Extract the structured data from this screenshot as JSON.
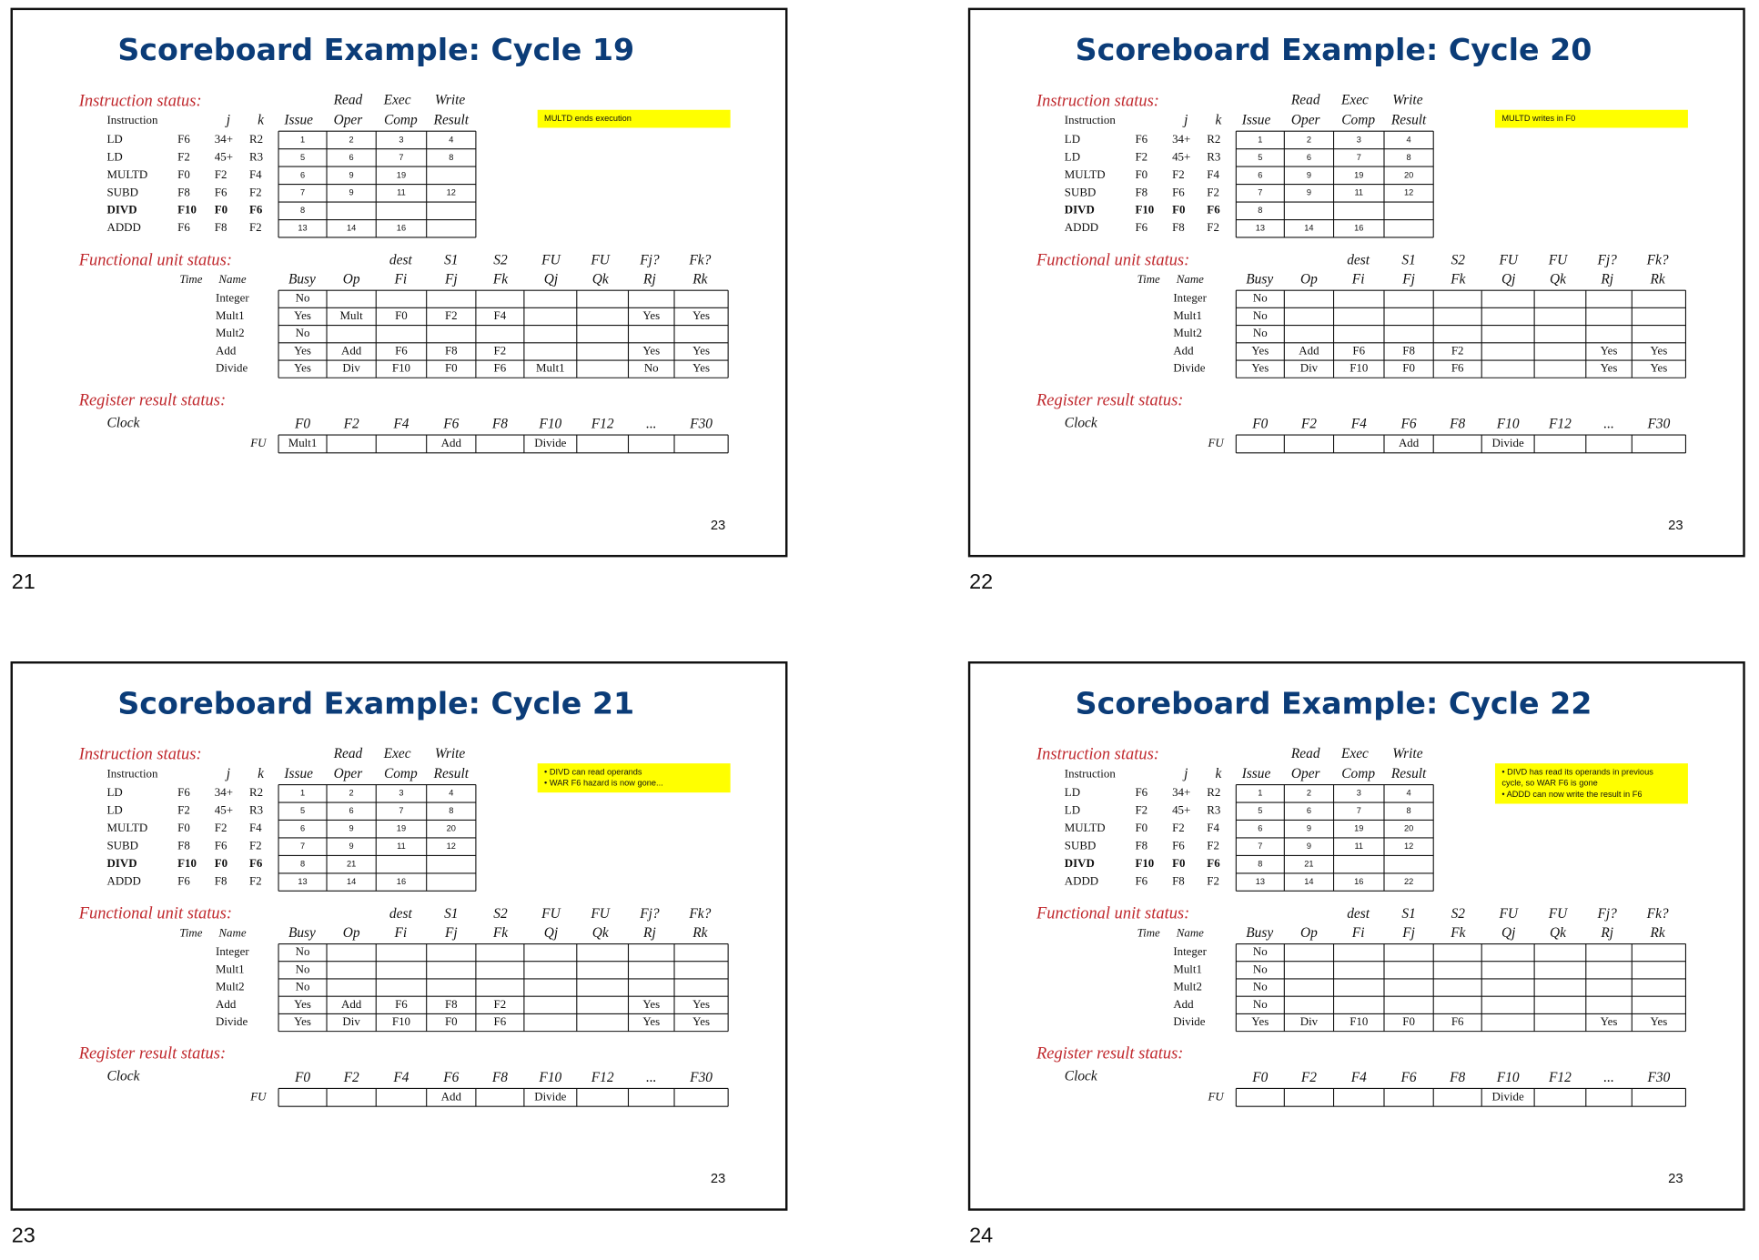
{
  "common": {
    "instruction_status": "Instruction status:",
    "instr_head_top": [
      "Read",
      "Exec",
      "Write"
    ],
    "instr_head": [
      "Instruction",
      "j",
      "k",
      "Issue",
      "Oper",
      "Comp",
      "Result"
    ],
    "instructions": [
      {
        "name": "LD",
        "ops": [
          "F6",
          "34+",
          "R2"
        ],
        "color": "#111111",
        "bold": false
      },
      {
        "name": "LD",
        "ops": [
          "F2",
          "45+",
          "R3"
        ],
        "color": "#c0282d",
        "bold": false
      },
      {
        "name": "MULTD",
        "ops": [
          "F0",
          "F2",
          "F4"
        ],
        "color": "#2b2ba8",
        "bold": false
      },
      {
        "name": "SUBD",
        "ops": [
          "F8",
          "F6",
          "F2"
        ],
        "color": "#c03cc8",
        "bold": false
      },
      {
        "name": "DIVD",
        "ops": [
          "F10",
          "F0",
          "F6"
        ],
        "color": "#1a9a3a",
        "bold": true
      },
      {
        "name": "ADDD",
        "ops": [
          "F6",
          "F8",
          "F2"
        ],
        "color": "#111111",
        "bold": false
      }
    ],
    "fu_status": "Functional unit status:",
    "fu_head_top": [
      "dest",
      "S1",
      "S2",
      "FU",
      "FU",
      "Fj?",
      "Fk?"
    ],
    "fu_head": [
      "Time",
      "Name",
      "Busy",
      "Op",
      "Fi",
      "Fj",
      "Fk",
      "Qj",
      "Qk",
      "Rj",
      "Rk"
    ],
    "fu_names": [
      "Integer",
      "Mult1",
      "Mult2",
      "Add",
      "Divide"
    ],
    "reg_status": "Register result status:",
    "clock": "Clock",
    "reg_head": [
      "F0",
      "F2",
      "F4",
      "F6",
      "F8",
      "F10",
      "F12",
      "...",
      "F30"
    ],
    "reg_row": "FU",
    "page_number": "23"
  },
  "slides": [
    {
      "label": "21",
      "title": "Scoreboard Example: Cycle 19",
      "note": [
        "MULTD ends execution"
      ],
      "status": [
        [
          1,
          2,
          3,
          4
        ],
        [
          5,
          6,
          7,
          8
        ],
        [
          6,
          9,
          19,
          null
        ],
        [
          7,
          9,
          11,
          12
        ],
        [
          8,
          null,
          null,
          null
        ],
        [
          13,
          14,
          16,
          null
        ]
      ],
      "fu": [
        [
          "No",
          null,
          null,
          null,
          null,
          null,
          null,
          null,
          null
        ],
        [
          "Yes",
          "Mult",
          "F0",
          "F2",
          "F4",
          null,
          null,
          "Yes",
          "Yes"
        ],
        [
          "No",
          null,
          null,
          null,
          null,
          null,
          null,
          null,
          null
        ],
        [
          "Yes",
          "Add",
          "F6",
          "F8",
          "F2",
          null,
          null,
          "Yes",
          "Yes"
        ],
        [
          "Yes",
          "Div",
          "F10",
          "F0",
          "F6",
          "Mult1",
          null,
          "No",
          "Yes"
        ]
      ],
      "reg": [
        "Mult1",
        null,
        null,
        "Add",
        null,
        "Divide",
        null,
        null,
        null
      ]
    },
    {
      "label": "22",
      "title": "Scoreboard Example: Cycle 20",
      "note": [
        "MULTD writes in F0"
      ],
      "status": [
        [
          1,
          2,
          3,
          4
        ],
        [
          5,
          6,
          7,
          8
        ],
        [
          6,
          9,
          19,
          20
        ],
        [
          7,
          9,
          11,
          12
        ],
        [
          8,
          null,
          null,
          null
        ],
        [
          13,
          14,
          16,
          null
        ]
      ],
      "fu": [
        [
          "No",
          null,
          null,
          null,
          null,
          null,
          null,
          null,
          null
        ],
        [
          "No",
          null,
          null,
          null,
          null,
          null,
          null,
          null,
          null
        ],
        [
          "No",
          null,
          null,
          null,
          null,
          null,
          null,
          null,
          null
        ],
        [
          "Yes",
          "Add",
          "F6",
          "F8",
          "F2",
          null,
          null,
          "Yes",
          "Yes"
        ],
        [
          "Yes",
          "Div",
          "F10",
          "F0",
          "F6",
          null,
          null,
          "Yes",
          "Yes"
        ]
      ],
      "reg": [
        null,
        null,
        null,
        "Add",
        null,
        "Divide",
        null,
        null,
        null
      ]
    },
    {
      "label": "23",
      "title": "Scoreboard Example: Cycle 21",
      "note": [
        "• DIVD can read operands",
        "• WAR F6 hazard is now gone..."
      ],
      "status": [
        [
          1,
          2,
          3,
          4
        ],
        [
          5,
          6,
          7,
          8
        ],
        [
          6,
          9,
          19,
          20
        ],
        [
          7,
          9,
          11,
          12
        ],
        [
          8,
          21,
          null,
          null
        ],
        [
          13,
          14,
          16,
          null
        ]
      ],
      "fu": [
        [
          "No",
          null,
          null,
          null,
          null,
          null,
          null,
          null,
          null
        ],
        [
          "No",
          null,
          null,
          null,
          null,
          null,
          null,
          null,
          null
        ],
        [
          "No",
          null,
          null,
          null,
          null,
          null,
          null,
          null,
          null
        ],
        [
          "Yes",
          "Add",
          "F6",
          "F8",
          "F2",
          null,
          null,
          "Yes",
          "Yes"
        ],
        [
          "Yes",
          "Div",
          "F10",
          "F0",
          "F6",
          null,
          null,
          "Yes",
          "Yes"
        ]
      ],
      "reg": [
        null,
        null,
        null,
        "Add",
        null,
        "Divide",
        null,
        null,
        null
      ]
    },
    {
      "label": "24",
      "title": "Scoreboard Example: Cycle 22",
      "note": [
        "• DIVD has read its operands in previous",
        "cycle, so WAR F6 is gone",
        "• ADDD can now write the result in F6"
      ],
      "status": [
        [
          1,
          2,
          3,
          4
        ],
        [
          5,
          6,
          7,
          8
        ],
        [
          6,
          9,
          19,
          20
        ],
        [
          7,
          9,
          11,
          12
        ],
        [
          8,
          21,
          null,
          null
        ],
        [
          13,
          14,
          16,
          22
        ]
      ],
      "fu": [
        [
          "No",
          null,
          null,
          null,
          null,
          null,
          null,
          null,
          null
        ],
        [
          "No",
          null,
          null,
          null,
          null,
          null,
          null,
          null,
          null
        ],
        [
          "No",
          null,
          null,
          null,
          null,
          null,
          null,
          null,
          null
        ],
        [
          "No",
          null,
          null,
          null,
          null,
          null,
          null,
          null,
          null
        ],
        [
          "Yes",
          "Div",
          "F10",
          "F0",
          "F6",
          null,
          null,
          "Yes",
          "Yes"
        ]
      ],
      "reg": [
        null,
        null,
        null,
        null,
        null,
        "Divide",
        null,
        null,
        null
      ]
    }
  ]
}
